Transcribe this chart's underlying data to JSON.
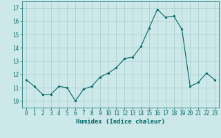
{
  "xlabel": "Humidex (Indice chaleur)",
  "x": [
    0,
    1,
    2,
    3,
    4,
    5,
    6,
    7,
    8,
    9,
    10,
    11,
    12,
    13,
    14,
    15,
    16,
    17,
    18,
    19,
    20,
    21,
    22,
    23
  ],
  "y": [
    11.6,
    11.1,
    10.5,
    10.5,
    11.1,
    11.0,
    10.0,
    10.9,
    11.1,
    11.8,
    12.1,
    12.5,
    13.2,
    13.3,
    14.1,
    15.5,
    16.9,
    16.3,
    16.4,
    15.4,
    11.1,
    11.4,
    12.1,
    11.6
  ],
  "line_color": "#006666",
  "marker": "*",
  "marker_size": 2.5,
  "bg_color": "#cce8e8",
  "grid_color": "#aacccc",
  "ylim": [
    9.5,
    17.5
  ],
  "xlim": [
    -0.5,
    23.5
  ],
  "yticks": [
    10,
    11,
    12,
    13,
    14,
    15,
    16,
    17
  ],
  "xticks": [
    0,
    1,
    2,
    3,
    4,
    5,
    6,
    7,
    8,
    9,
    10,
    11,
    12,
    13,
    14,
    15,
    16,
    17,
    18,
    19,
    20,
    21,
    22,
    23
  ],
  "tick_color": "#006666",
  "label_color": "#006666",
  "xlabel_fontsize": 6.5,
  "tick_fontsize": 5.5
}
